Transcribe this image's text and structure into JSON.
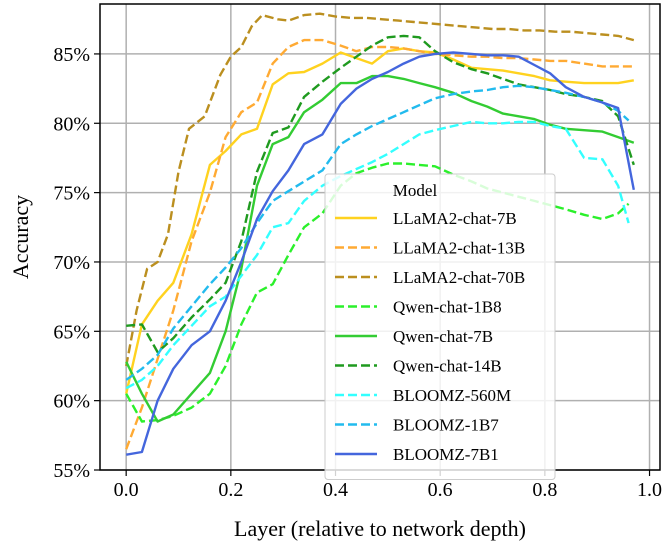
{
  "chart_data": {
    "type": "line",
    "title": "",
    "xlabel": "Layer (relative to network depth)",
    "ylabel": "Accuracy",
    "xlim": [
      -0.05,
      1.02
    ],
    "ylim": [
      55,
      88.6
    ],
    "x_ticks": [
      0.0,
      0.2,
      0.4,
      0.6,
      0.8,
      1.0
    ],
    "x_tick_labels": [
      "0.0",
      "0.2",
      "0.4",
      "0.6",
      "0.8",
      "1.0"
    ],
    "y_ticks": [
      55,
      60,
      65,
      70,
      75,
      80,
      85
    ],
    "y_tick_labels": [
      "55%",
      "60%",
      "65%",
      "70%",
      "75%",
      "80%",
      "85%"
    ],
    "grid": true,
    "legend": {
      "title": "Model",
      "placement": "center-right"
    },
    "series": [
      {
        "name": "LLaMA2-chat-7B",
        "color": "#FFD21F",
        "dash": "solid",
        "x": [
          0,
          0.03,
          0.06,
          0.09,
          0.125,
          0.16,
          0.19,
          0.22,
          0.25,
          0.28,
          0.31,
          0.34,
          0.375,
          0.41,
          0.44,
          0.47,
          0.5,
          0.53,
          0.56,
          0.59,
          0.625,
          0.66,
          0.69,
          0.72,
          0.75,
          0.78,
          0.81,
          0.84,
          0.875,
          0.91,
          0.94,
          0.97
        ],
        "y": [
          60.5,
          65.5,
          67.2,
          68.5,
          72.0,
          77.0,
          78.0,
          79.2,
          79.6,
          82.8,
          83.6,
          83.7,
          84.3,
          85.1,
          84.7,
          84.3,
          85.2,
          85.4,
          85.2,
          85.1,
          84.6,
          84.0,
          83.9,
          83.8,
          83.6,
          83.4,
          83.1,
          83.0,
          82.9,
          82.9,
          82.9,
          83.1
        ]
      },
      {
        "name": "LLaMA2-chat-13B",
        "color": "#FFAA33",
        "dash": "dashed",
        "x": [
          0,
          0.03,
          0.06,
          0.09,
          0.125,
          0.16,
          0.19,
          0.22,
          0.25,
          0.28,
          0.31,
          0.34,
          0.375,
          0.41,
          0.44,
          0.47,
          0.5,
          0.53,
          0.56,
          0.59,
          0.625,
          0.66,
          0.69,
          0.72,
          0.75,
          0.78,
          0.81,
          0.84,
          0.875,
          0.91,
          0.94,
          0.97
        ],
        "y": [
          56.5,
          59.5,
          63.0,
          66.5,
          71.5,
          75.0,
          79.0,
          80.8,
          81.5,
          84.3,
          85.5,
          86.0,
          86.0,
          85.6,
          85.2,
          85.5,
          85.5,
          85.4,
          85.2,
          85.0,
          84.9,
          84.8,
          84.8,
          84.7,
          84.7,
          84.6,
          84.5,
          84.5,
          84.3,
          84.1,
          84.1,
          84.1
        ]
      },
      {
        "name": "LLaMA2-chat-70B",
        "color": "#BB8F1F",
        "dash": "dashed",
        "x": [
          0,
          0.02,
          0.04,
          0.06,
          0.08,
          0.1,
          0.12,
          0.15,
          0.18,
          0.2,
          0.22,
          0.24,
          0.26,
          0.29,
          0.31,
          0.34,
          0.37,
          0.4,
          0.43,
          0.46,
          0.49,
          0.52,
          0.55,
          0.58,
          0.61,
          0.64,
          0.67,
          0.7,
          0.73,
          0.76,
          0.79,
          0.82,
          0.85,
          0.88,
          0.91,
          0.94,
          0.97
        ],
        "y": [
          62.5,
          66.5,
          69.5,
          70.0,
          72.0,
          76.5,
          79.6,
          80.5,
          83.5,
          84.8,
          85.5,
          87.0,
          87.8,
          87.5,
          87.4,
          87.8,
          87.9,
          87.7,
          87.6,
          87.6,
          87.5,
          87.4,
          87.3,
          87.2,
          87.1,
          87.0,
          86.9,
          86.8,
          86.8,
          86.7,
          86.7,
          86.6,
          86.6,
          86.5,
          86.4,
          86.3,
          86.0
        ]
      },
      {
        "name": "Qwen-chat-1B8",
        "color": "#2BF02B",
        "dash": "dashed",
        "x": [
          0,
          0.03,
          0.06,
          0.09,
          0.125,
          0.16,
          0.19,
          0.22,
          0.25,
          0.28,
          0.31,
          0.34,
          0.375,
          0.41,
          0.44,
          0.47,
          0.5,
          0.53,
          0.56,
          0.59,
          0.625,
          0.66,
          0.69,
          0.72,
          0.75,
          0.78,
          0.81,
          0.84,
          0.875,
          0.91,
          0.94,
          0.96
        ],
        "y": [
          60.5,
          58.5,
          58.6,
          58.9,
          59.5,
          60.5,
          62.5,
          65.5,
          67.8,
          68.4,
          70.5,
          72.5,
          73.5,
          75.5,
          76.4,
          76.8,
          77.1,
          77.1,
          77.0,
          76.9,
          76.3,
          75.8,
          75.3,
          75.0,
          74.7,
          74.4,
          74.1,
          73.8,
          73.4,
          73.1,
          73.5,
          74.2
        ]
      },
      {
        "name": "Qwen-chat-7B",
        "color": "#33CC33",
        "dash": "solid",
        "x": [
          0,
          0.03,
          0.06,
          0.09,
          0.125,
          0.16,
          0.19,
          0.22,
          0.25,
          0.28,
          0.31,
          0.34,
          0.375,
          0.41,
          0.44,
          0.47,
          0.5,
          0.53,
          0.56,
          0.59,
          0.625,
          0.66,
          0.69,
          0.72,
          0.75,
          0.78,
          0.81,
          0.84,
          0.875,
          0.91,
          0.94,
          0.97
        ],
        "y": [
          62.8,
          60.5,
          58.5,
          59.0,
          60.5,
          62.0,
          65.0,
          69.5,
          75.5,
          78.5,
          79.0,
          80.8,
          81.7,
          82.9,
          82.9,
          83.4,
          83.4,
          83.2,
          82.9,
          82.6,
          82.2,
          81.6,
          81.2,
          80.7,
          80.5,
          80.3,
          79.9,
          79.6,
          79.5,
          79.4,
          79.0,
          78.6
        ]
      },
      {
        "name": "Qwen-chat-14B",
        "color": "#1F9A1F",
        "dash": "dashed",
        "x": [
          0,
          0.03,
          0.06,
          0.09,
          0.125,
          0.16,
          0.19,
          0.22,
          0.25,
          0.28,
          0.31,
          0.34,
          0.375,
          0.41,
          0.44,
          0.47,
          0.5,
          0.53,
          0.56,
          0.59,
          0.625,
          0.66,
          0.69,
          0.72,
          0.75,
          0.78,
          0.81,
          0.84,
          0.875,
          0.91,
          0.94,
          0.97
        ],
        "y": [
          65.4,
          65.5,
          63.5,
          64.5,
          66.0,
          67.3,
          68.5,
          71.5,
          76.5,
          79.3,
          79.7,
          81.9,
          83.0,
          84.0,
          84.8,
          85.6,
          86.2,
          86.3,
          86.2,
          85.2,
          84.4,
          83.9,
          83.6,
          83.2,
          82.8,
          82.6,
          82.4,
          82.1,
          81.9,
          81.6,
          80.5,
          77.0
        ]
      },
      {
        "name": "BLOOMZ-560M",
        "color": "#33FFFF",
        "dash": "dashed",
        "x": [
          0,
          0.03,
          0.06,
          0.09,
          0.125,
          0.16,
          0.19,
          0.22,
          0.25,
          0.28,
          0.31,
          0.34,
          0.375,
          0.41,
          0.44,
          0.47,
          0.5,
          0.53,
          0.56,
          0.59,
          0.625,
          0.66,
          0.69,
          0.72,
          0.75,
          0.78,
          0.81,
          0.84,
          0.875,
          0.91,
          0.94,
          0.96
        ],
        "y": [
          60.9,
          61.5,
          62.5,
          64.0,
          65.4,
          66.8,
          67.5,
          69.0,
          70.5,
          72.5,
          72.8,
          74.4,
          75.5,
          76.2,
          76.7,
          77.2,
          77.8,
          78.5,
          79.2,
          79.5,
          79.8,
          80.1,
          80.0,
          80.0,
          80.1,
          80.1,
          79.8,
          79.6,
          77.5,
          77.4,
          75.5,
          72.8
        ]
      },
      {
        "name": "BLOOMZ-1B7",
        "color": "#22BBEE",
        "dash": "dashed",
        "x": [
          0,
          0.03,
          0.06,
          0.09,
          0.125,
          0.16,
          0.19,
          0.22,
          0.25,
          0.28,
          0.31,
          0.34,
          0.375,
          0.41,
          0.44,
          0.47,
          0.5,
          0.53,
          0.56,
          0.59,
          0.625,
          0.66,
          0.69,
          0.72,
          0.75,
          0.78,
          0.81,
          0.84,
          0.875,
          0.91,
          0.94,
          0.96
        ],
        "y": [
          61.5,
          62.3,
          63.3,
          65.2,
          66.8,
          68.4,
          69.6,
          71.0,
          72.8,
          74.4,
          75.1,
          75.8,
          76.6,
          78.5,
          79.2,
          79.8,
          80.3,
          80.8,
          81.3,
          81.8,
          82.1,
          82.3,
          82.4,
          82.6,
          82.7,
          82.6,
          82.4,
          82.2,
          81.9,
          81.5,
          80.9,
          80.2
        ]
      },
      {
        "name": "BLOOMZ-7B1",
        "color": "#4466DD",
        "dash": "solid",
        "x": [
          0,
          0.03,
          0.06,
          0.09,
          0.125,
          0.16,
          0.19,
          0.22,
          0.25,
          0.28,
          0.31,
          0.34,
          0.375,
          0.41,
          0.44,
          0.47,
          0.5,
          0.53,
          0.56,
          0.59,
          0.625,
          0.66,
          0.69,
          0.72,
          0.75,
          0.78,
          0.81,
          0.84,
          0.875,
          0.91,
          0.94,
          0.97
        ],
        "y": [
          56.1,
          56.3,
          60.0,
          62.3,
          64.0,
          65.0,
          67.2,
          70.0,
          73.1,
          75.1,
          76.6,
          78.5,
          79.2,
          81.4,
          82.5,
          83.2,
          83.7,
          84.3,
          84.8,
          85.0,
          85.1,
          85.0,
          84.9,
          84.9,
          84.8,
          84.2,
          83.6,
          82.6,
          81.9,
          81.5,
          81.1,
          75.2
        ]
      }
    ]
  }
}
